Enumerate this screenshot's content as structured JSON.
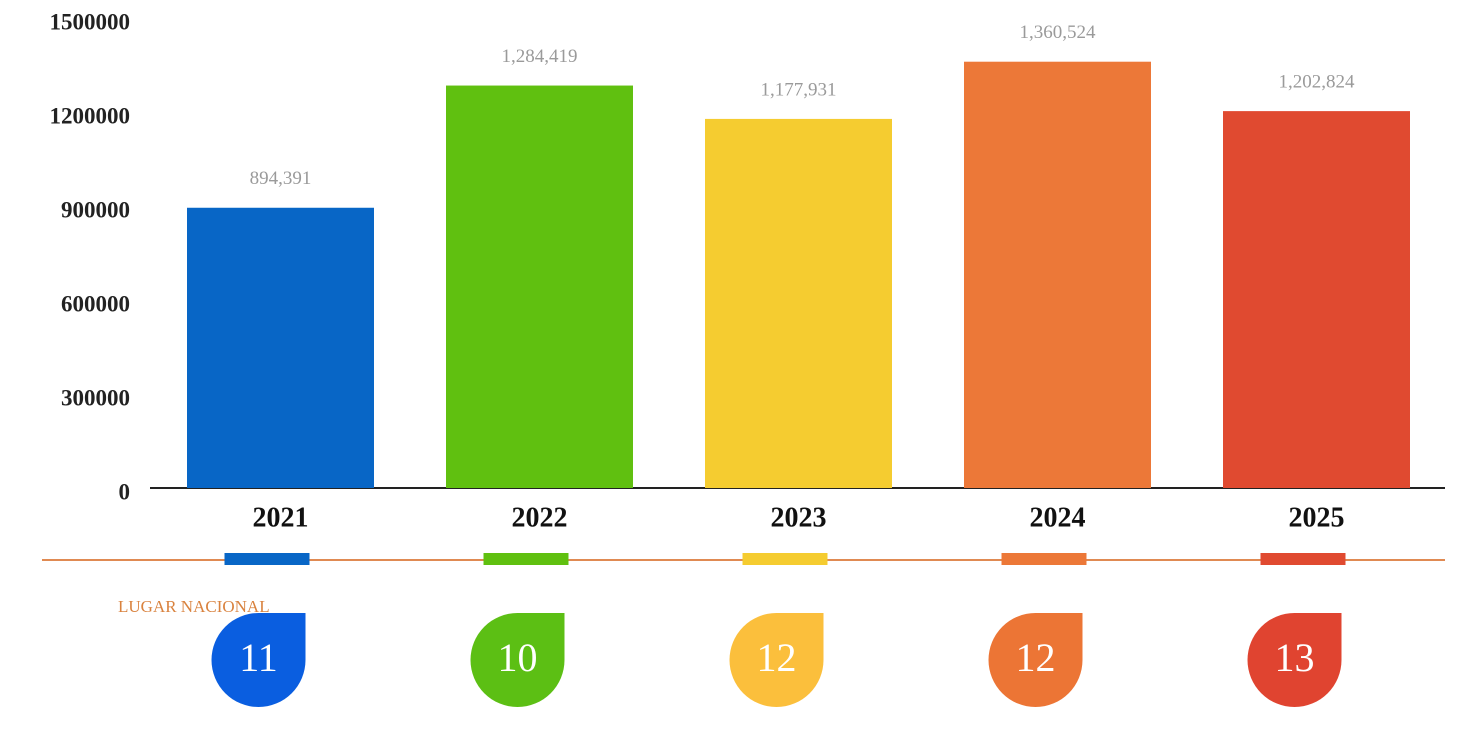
{
  "chart_data": {
    "type": "bar",
    "categories": [
      "2021",
      "2022",
      "2023",
      "2024",
      "2025"
    ],
    "values": [
      894391,
      1284419,
      1177931,
      1360524,
      1202824
    ],
    "value_labels": [
      "894,391",
      "1,284,419",
      "1,177,931",
      "1,360,524",
      "1,202,824"
    ],
    "colors": [
      "#0866c6",
      "#60c010",
      "#f5cc30",
      "#ec7838",
      "#e04a30"
    ],
    "ylim": [
      0,
      1500000
    ],
    "yticks": [
      0,
      300000,
      600000,
      900000,
      1200000,
      1500000
    ]
  },
  "ranking": {
    "title": "LUGAR NACIONAL",
    "values": [
      11,
      10,
      12,
      12,
      13
    ],
    "colors": [
      "#0a5ee0",
      "#5cbf14",
      "#fbbf3c",
      "#ec7535",
      "#e04430"
    ]
  }
}
